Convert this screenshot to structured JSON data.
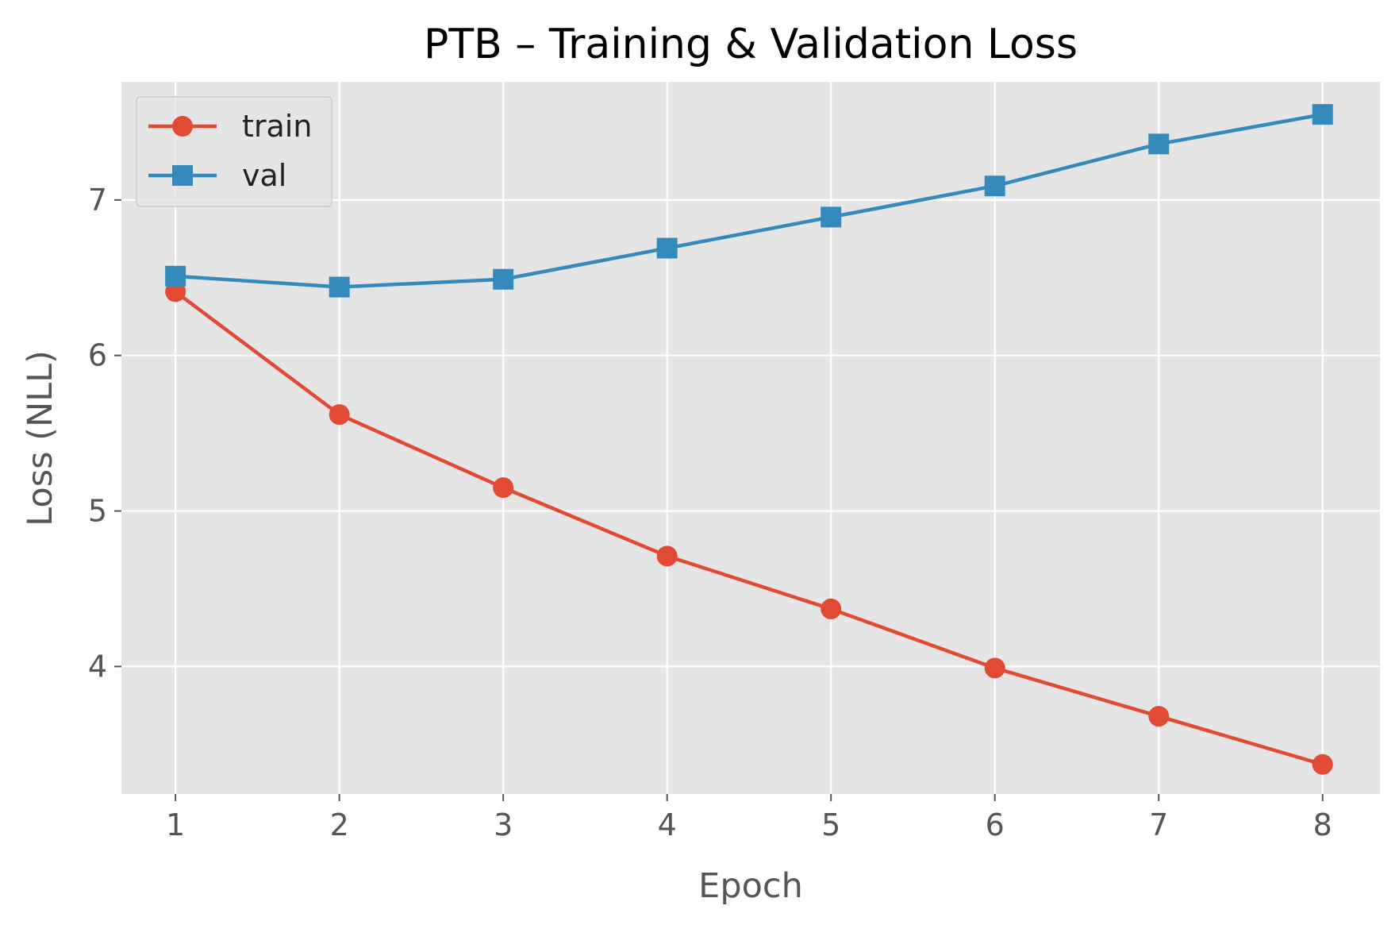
{
  "chart_data": {
    "type": "line",
    "title": "PTB – Training & Validation Loss",
    "xlabel": "Epoch",
    "ylabel": "Loss (NLL)",
    "x": [
      1,
      2,
      3,
      4,
      5,
      6,
      7,
      8
    ],
    "xticks": [
      "1",
      "2",
      "3",
      "4",
      "5",
      "6",
      "7",
      "8"
    ],
    "yticks": [
      "4",
      "5",
      "6",
      "7"
    ],
    "xlim": [
      0.67,
      8.35
    ],
    "ylim": [
      3.18,
      7.76
    ],
    "grid": true,
    "legend_position": "top-left",
    "series": [
      {
        "name": "train",
        "color": "#E24A33",
        "marker": "circle",
        "values": [
          6.41,
          5.62,
          5.15,
          4.71,
          4.37,
          3.99,
          3.68,
          3.37
        ]
      },
      {
        "name": "val",
        "color": "#348ABD",
        "marker": "square",
        "values": [
          6.51,
          6.44,
          6.49,
          6.69,
          6.89,
          7.09,
          7.36,
          7.55
        ]
      }
    ],
    "background_color": "#E5E5E5"
  }
}
